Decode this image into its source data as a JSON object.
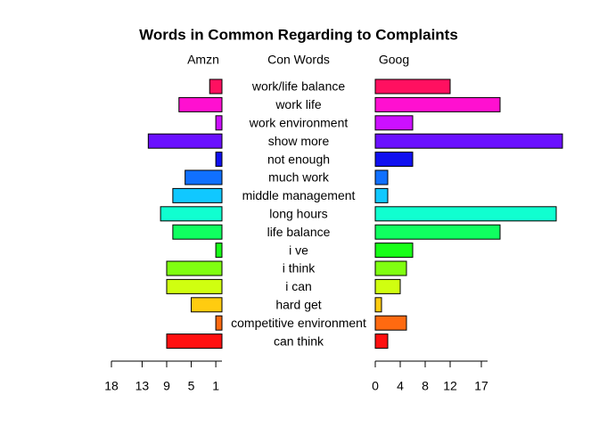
{
  "chart_data": {
    "type": "pyramid",
    "title": "Words in Common Regarding to Complaints",
    "left_label": "Amzn",
    "center_label": "Con Words",
    "right_label": "Goog",
    "categories": [
      "work/life balance",
      "work life",
      "work environment",
      "show more",
      "not enough",
      "much work",
      "middle management",
      "long hours",
      "life balance",
      "i ve",
      "i think",
      "i can",
      "hard get",
      "competitive environment",
      "can think"
    ],
    "colors": [
      "#FF1060",
      "#FF10D0",
      "#CC10FF",
      "#6A10FF",
      "#1010F0",
      "#1070FF",
      "#10C8FF",
      "#10FFD0",
      "#10FF60",
      "#18FF18",
      "#80FF10",
      "#D0FF10",
      "#FFCC10",
      "#FF6A10",
      "#FF1010"
    ],
    "series": [
      {
        "name": "Amzn",
        "values": [
          2,
          7,
          1,
          12,
          1,
          6,
          8,
          10,
          8,
          1,
          9,
          9,
          5,
          1,
          9
        ]
      },
      {
        "name": "Goog",
        "values": [
          12,
          20,
          6,
          30,
          6,
          2,
          2,
          29,
          20,
          6,
          5,
          4,
          1,
          5,
          2
        ]
      }
    ],
    "left_xlim": [
      0,
      18
    ],
    "left_xticks": [
      18,
      13,
      9,
      5,
      1
    ],
    "right_xlim": [
      0,
      18
    ],
    "right_xticks": [
      0,
      4,
      8,
      12,
      17
    ]
  }
}
